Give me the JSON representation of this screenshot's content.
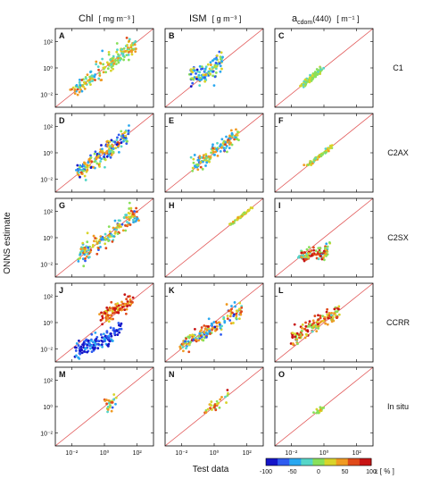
{
  "figure": {
    "column_titles": [
      {
        "main": "Chl",
        "sub": "",
        "unit": "[ mg m⁻³ ]"
      },
      {
        "main": "ISM",
        "sub": "",
        "unit": "[ g m⁻³ ]"
      },
      {
        "main": "a",
        "sub": "cdom",
        "extra": "(440)",
        "unit": "[ m⁻¹ ]"
      }
    ],
    "row_labels": [
      "C1",
      "C2AX",
      "C2SX",
      "CCRR",
      "In situ"
    ],
    "panel_letters": [
      "A",
      "B",
      "C",
      "D",
      "E",
      "F",
      "G",
      "H",
      "I",
      "J",
      "K",
      "L",
      "M",
      "N",
      "O"
    ],
    "ylabel": "ONNS estimate",
    "xlabel": "Test data",
    "y_tick_labels": [
      "10²",
      "10⁰",
      "10⁻²"
    ],
    "x_tick_labels": [
      "10⁻²",
      "10⁰",
      "10²"
    ],
    "colorbar": {
      "label": "ε [ % ]",
      "ticks": [
        "-100",
        "-50",
        "0",
        "50",
        "100"
      ],
      "colors": [
        "#1515c8",
        "#2f5cf0",
        "#2aa8f0",
        "#55d6c8",
        "#88e05a",
        "#d8d42a",
        "#f09a22",
        "#e04a1a",
        "#c81414"
      ]
    },
    "identity_line_color": "#e05050"
  },
  "chart_data": {
    "type": "scatter",
    "xscale": "log",
    "yscale": "log",
    "xlim": [
      0.001,
      1000
    ],
    "ylim": [
      0.001,
      1000
    ],
    "grid": false,
    "xlabel": "Test data",
    "ylabel": "ONNS estimate",
    "colorbar_label": "ε [ % ]",
    "colorbar_range": [
      -100,
      100
    ],
    "panels": [
      {
        "letter": "A",
        "row": "C1",
        "column": "Chl",
        "clusters": [
          {
            "x": [
              0.01,
              0.05,
              0.2,
              1,
              3,
              10,
              40,
              100
            ],
            "y": [
              0.02,
              0.05,
              0.3,
              1.2,
              3,
              12,
              35,
              80
            ],
            "scatter": 0.35,
            "n": 170,
            "eps": [
              -40,
              60
            ]
          }
        ]
      },
      {
        "letter": "B",
        "row": "C1",
        "column": "ISM",
        "clusters": [
          {
            "x": [
              0.03,
              0.1,
              0.3,
              1,
              3
            ],
            "y": [
              0.2,
              0.25,
              0.4,
              1,
              4
            ],
            "scatter": 0.4,
            "n": 120,
            "eps": [
              -80,
              40
            ]
          }
        ]
      },
      {
        "letter": "C",
        "row": "C1",
        "column": "a_cdom(440)",
        "clusters": [
          {
            "x": [
              0.05,
              0.1,
              0.3,
              0.8
            ],
            "y": [
              0.05,
              0.1,
              0.3,
              0.8
            ],
            "scatter": 0.12,
            "n": 100,
            "eps": [
              -20,
              20
            ]
          }
        ]
      },
      {
        "letter": "D",
        "row": "C2AX",
        "column": "Chl",
        "clusters": [
          {
            "x": [
              0.02,
              0.1,
              0.5,
              2,
              8,
              30
            ],
            "y": [
              0.03,
              0.08,
              0.5,
              2,
              8,
              30
            ],
            "scatter": 0.4,
            "n": 170,
            "eps": [
              -90,
              60
            ]
          }
        ]
      },
      {
        "letter": "E",
        "row": "C2AX",
        "column": "ISM",
        "clusters": [
          {
            "x": [
              0.05,
              0.2,
              1,
              5,
              30
            ],
            "y": [
              0.1,
              0.3,
              1.2,
              5,
              30
            ],
            "scatter": 0.3,
            "n": 130,
            "eps": [
              -60,
              60
            ]
          }
        ]
      },
      {
        "letter": "F",
        "row": "C2AX",
        "column": "a_cdom(440)",
        "clusters": [
          {
            "x": [
              0.1,
              0.3,
              1,
              3
            ],
            "y": [
              0.1,
              0.3,
              1,
              3
            ],
            "scatter": 0.08,
            "n": 60,
            "eps": [
              -30,
              60
            ]
          }
        ]
      },
      {
        "letter": "G",
        "row": "C2SX",
        "column": "Chl",
        "clusters": [
          {
            "x": [
              0.03,
              0.2,
              1,
              5,
              30,
              100
            ],
            "y": [
              0.05,
              0.3,
              1,
              5,
              30,
              60
            ],
            "scatter": 0.35,
            "n": 170,
            "eps": [
              -70,
              70
            ]
          }
        ]
      },
      {
        "letter": "H",
        "row": "C2SX",
        "column": "ISM",
        "clusters": [
          {
            "x": [
              10,
              30,
              80,
              200
            ],
            "y": [
              10,
              30,
              80,
              200
            ],
            "scatter": 0.05,
            "n": 40,
            "eps": [
              0,
              40
            ]
          }
        ]
      },
      {
        "letter": "I",
        "row": "C2SX",
        "column": "a_cdom(440)",
        "clusters": [
          {
            "x": [
              0.03,
              0.1,
              0.3,
              1,
              2
            ],
            "y": [
              0.03,
              0.05,
              0.06,
              0.07,
              0.12
            ],
            "scatter": 0.25,
            "n": 110,
            "eps": [
              -40,
              100
            ]
          }
        ]
      },
      {
        "letter": "J",
        "row": "CCRR",
        "column": "Chl",
        "clusters": [
          {
            "x": [
              0.02,
              0.1,
              0.5,
              3,
              10
            ],
            "y": [
              0.01,
              0.015,
              0.03,
              0.08,
              0.4
            ],
            "scatter": 0.3,
            "n": 140,
            "eps": [
              -100,
              -40
            ]
          },
          {
            "x": [
              0.5,
              2,
              10,
              50
            ],
            "y": [
              2,
              5,
              15,
              60
            ],
            "scatter": 0.3,
            "n": 100,
            "eps": [
              20,
              100
            ]
          }
        ]
      },
      {
        "letter": "K",
        "row": "CCRR",
        "column": "ISM",
        "clusters": [
          {
            "x": [
              0.01,
              0.05,
              0.3,
              2,
              10,
              50
            ],
            "y": [
              0.02,
              0.05,
              0.2,
              0.6,
              3,
              10
            ],
            "scatter": 0.3,
            "n": 160,
            "eps": [
              -80,
              80
            ]
          }
        ]
      },
      {
        "letter": "L",
        "row": "CCRR",
        "column": "a_cdom(440)",
        "clusters": [
          {
            "x": [
              0.01,
              0.1,
              1,
              8
            ],
            "y": [
              0.05,
              0.3,
              2,
              8
            ],
            "scatter": 0.3,
            "n": 140,
            "eps": [
              -20,
              100
            ]
          }
        ]
      },
      {
        "letter": "M",
        "row": "In situ",
        "column": "Chl",
        "clusters": [
          {
            "x": [
              1,
              2,
              4,
              6
            ],
            "y": [
              0.8,
              1.5,
              3,
              2
            ],
            "scatter": 0.3,
            "n": 25,
            "eps": [
              -80,
              80
            ]
          }
        ]
      },
      {
        "letter": "N",
        "row": "In situ",
        "column": "ISM",
        "clusters": [
          {
            "x": [
              0.3,
              1,
              3,
              8
            ],
            "y": [
              0.5,
              1,
              3,
              10
            ],
            "scatter": 0.25,
            "n": 30,
            "eps": [
              -20,
              100
            ]
          }
        ]
      },
      {
        "letter": "O",
        "row": "In situ",
        "column": "a_cdom(440)",
        "clusters": [
          {
            "x": [
              0.3,
              0.5,
              1
            ],
            "y": [
              0.3,
              0.5,
              0.9
            ],
            "scatter": 0.1,
            "n": 15,
            "eps": [
              0,
              40
            ]
          }
        ]
      }
    ]
  }
}
